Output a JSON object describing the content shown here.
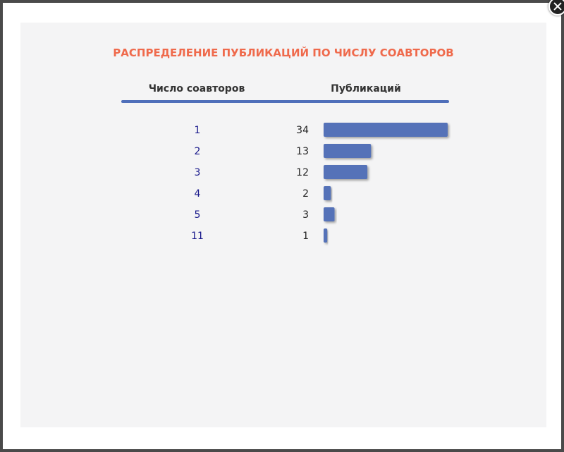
{
  "chart_data": {
    "type": "bar",
    "title": "РАСПРЕДЕЛЕНИЕ ПУБЛИКАЦИЙ ПО ЧИСЛУ СОАВТОРОВ",
    "column_headers": {
      "authors": "Число соавторов",
      "publications": "Публикаций"
    },
    "categories": [
      "1",
      "2",
      "3",
      "4",
      "5",
      "11"
    ],
    "values": [
      34,
      13,
      12,
      2,
      3,
      1
    ],
    "orientation": "horizontal",
    "xlim": [
      0,
      34
    ],
    "grid": false,
    "legend": "none",
    "colors": {
      "bar": "#5472b8",
      "title": "#ef6a4c",
      "category_text": "#1a1a8c",
      "value_text": "#222222"
    }
  }
}
